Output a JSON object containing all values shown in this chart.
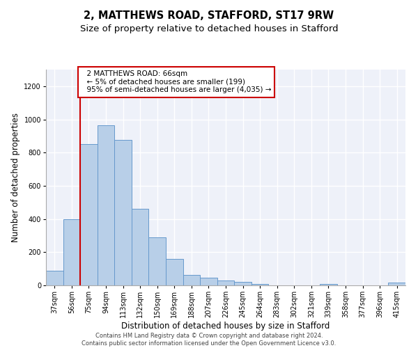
{
  "title": "2, MATTHEWS ROAD, STAFFORD, ST17 9RW",
  "subtitle": "Size of property relative to detached houses in Stafford",
  "xlabel": "Distribution of detached houses by size in Stafford",
  "ylabel": "Number of detached properties",
  "categories": [
    "37sqm",
    "56sqm",
    "75sqm",
    "94sqm",
    "113sqm",
    "132sqm",
    "150sqm",
    "169sqm",
    "188sqm",
    "207sqm",
    "226sqm",
    "245sqm",
    "264sqm",
    "283sqm",
    "302sqm",
    "321sqm",
    "339sqm",
    "358sqm",
    "377sqm",
    "396sqm",
    "415sqm"
  ],
  "values": [
    90,
    400,
    850,
    965,
    875,
    460,
    290,
    160,
    65,
    48,
    30,
    20,
    10,
    0,
    0,
    0,
    10,
    0,
    0,
    0,
    15
  ],
  "bar_color": "#b8cfe8",
  "bar_edgecolor": "#6699cc",
  "bar_linewidth": 0.7,
  "vline_x_index": 1,
  "vline_x_offset": 0.5,
  "vline_color": "#cc0000",
  "annotation_text": "  2 MATTHEWS ROAD: 66sqm\n  ← 5% of detached houses are smaller (199)\n  95% of semi-detached houses are larger (4,035) →",
  "annotation_box_edgecolor": "#cc0000",
  "ylim": [
    0,
    1300
  ],
  "yticks": [
    0,
    200,
    400,
    600,
    800,
    1000,
    1200
  ],
  "bg_color": "#eef1f9",
  "grid_color": "#ffffff",
  "footer_text": "Contains HM Land Registry data © Crown copyright and database right 2024.\nContains public sector information licensed under the Open Government Licence v3.0.",
  "title_fontsize": 10.5,
  "subtitle_fontsize": 9.5,
  "xlabel_fontsize": 8.5,
  "ylabel_fontsize": 8.5,
  "tick_fontsize": 7,
  "annotation_fontsize": 7.5,
  "footer_fontsize": 6
}
